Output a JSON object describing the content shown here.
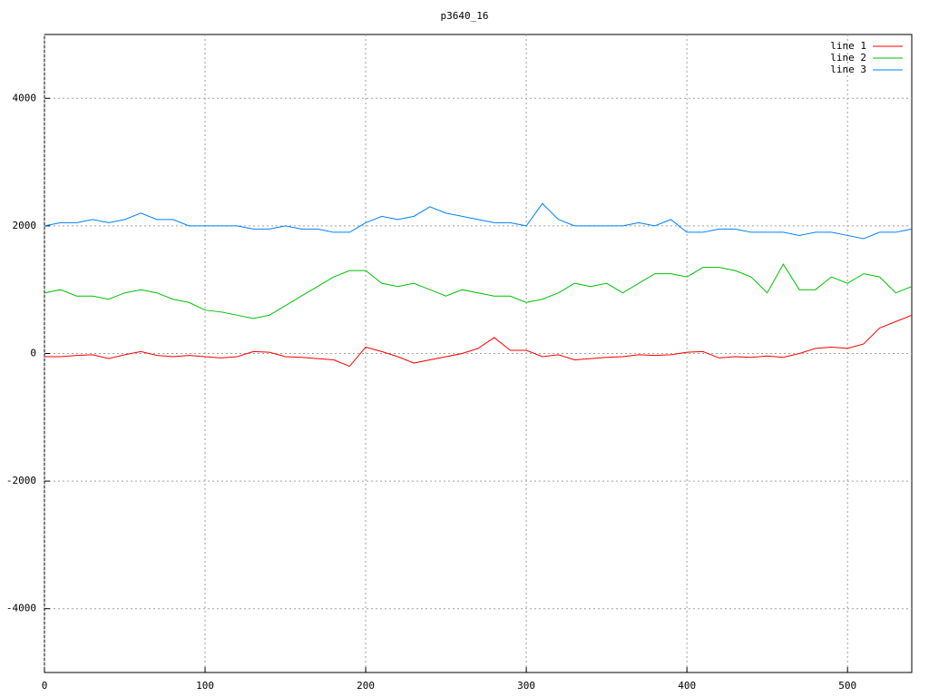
{
  "chart_data": {
    "type": "line",
    "title": "p3640_16",
    "x": [
      0,
      10,
      20,
      30,
      40,
      50,
      60,
      70,
      80,
      90,
      100,
      110,
      120,
      130,
      140,
      150,
      160,
      170,
      180,
      190,
      200,
      210,
      220,
      230,
      240,
      250,
      260,
      270,
      280,
      290,
      300,
      310,
      320,
      330,
      340,
      350,
      360,
      370,
      380,
      390,
      400,
      410,
      420,
      430,
      440,
      450,
      460,
      470,
      480,
      490,
      500,
      510,
      520,
      530,
      540
    ],
    "series": [
      {
        "name": "line 1",
        "color": "#ff0000",
        "values": [
          -50,
          -50,
          -30,
          -20,
          -80,
          -20,
          30,
          -30,
          -50,
          -30,
          -50,
          -70,
          -50,
          30,
          20,
          -50,
          -60,
          -80,
          -100,
          -200,
          100,
          30,
          -50,
          -150,
          -100,
          -50,
          0,
          80,
          250,
          50,
          50,
          -50,
          -20,
          -100,
          -80,
          -60,
          -50,
          -20,
          -30,
          -20,
          20,
          30,
          -70,
          -50,
          -60,
          -40,
          -60,
          0,
          80,
          100,
          80,
          150,
          400,
          500,
          600
        ]
      },
      {
        "name": "line 2",
        "color": "#00c000",
        "values": [
          950,
          1000,
          900,
          900,
          850,
          950,
          1000,
          950,
          850,
          800,
          680,
          650,
          600,
          550,
          600,
          750,
          900,
          1050,
          1200,
          1300,
          1300,
          1100,
          1050,
          1100,
          1000,
          900,
          1000,
          950,
          900,
          900,
          800,
          850,
          950,
          1100,
          1050,
          1100,
          950,
          1100,
          1250,
          1250,
          1200,
          1350,
          1350,
          1300,
          1200,
          950,
          1400,
          1000,
          1000,
          1200,
          1100,
          1250,
          1200,
          950,
          1050
        ]
      },
      {
        "name": "line 3",
        "color": "#0080ff",
        "values": [
          2000,
          2050,
          2050,
          2100,
          2050,
          2100,
          2200,
          2100,
          2100,
          2000,
          2000,
          2000,
          2000,
          1950,
          1950,
          2000,
          1950,
          1950,
          1900,
          1900,
          2050,
          2150,
          2100,
          2150,
          2300,
          2200,
          2150,
          2100,
          2050,
          2050,
          2000,
          2350,
          2100,
          2000,
          2000,
          2000,
          2000,
          2050,
          2000,
          2100,
          1900,
          1900,
          1950,
          1950,
          1900,
          1900,
          1900,
          1850,
          1900,
          1900,
          1850,
          1800,
          1900,
          1900,
          1950
        ]
      }
    ],
    "xlim": [
      0,
      540
    ],
    "ylim": [
      -5000,
      5000
    ],
    "xticks": [
      0,
      100,
      200,
      300,
      400,
      500
    ],
    "yticks": [
      -4000,
      -2000,
      0,
      2000,
      4000
    ],
    "grid": true,
    "legend": "top-right"
  }
}
